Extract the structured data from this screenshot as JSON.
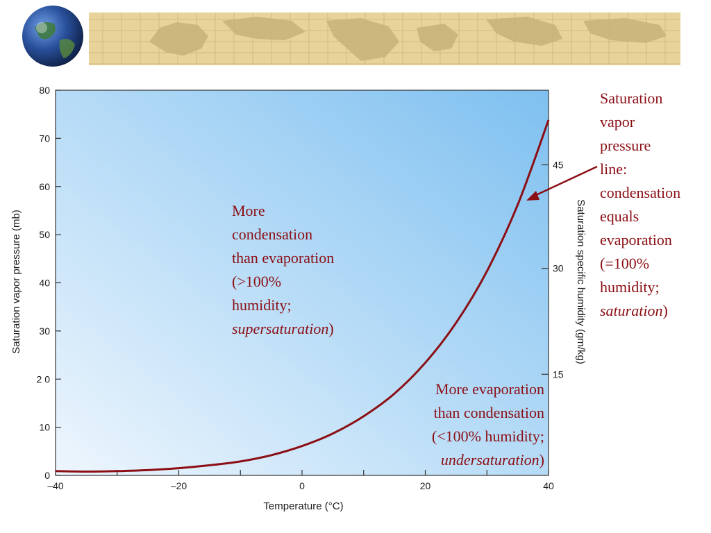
{
  "colors": {
    "banner_bg": "#e8d39a",
    "banner_land": "#c9b57a",
    "plot_fill_light": "#eef6fd",
    "plot_fill_dark": "#7ec0f0",
    "curve": "#8b0e14",
    "annotation_text": "#8b0e14"
  },
  "icons": {
    "globe": "globe-icon"
  },
  "annotations": {
    "supersaturation": {
      "line1": "More",
      "line2": "condensation",
      "line3": "than evaporation",
      "line4": "(>100%",
      "line5": "humidity;",
      "line6_italic": "supersaturation",
      "line6_tail": ")"
    },
    "undersaturation": {
      "line1": "More evaporation",
      "line2": "than condensation",
      "line3": "(<100% humidity;",
      "line4_italic": "undersaturation",
      "line4_tail": ")"
    },
    "saturation_line": {
      "line1": "Saturation",
      "line2": "vapor",
      "line3": "pressure",
      "line4": "line:",
      "line5": "condensation",
      "line6": "equals",
      "line7": "evaporation",
      "line8": "(=100%",
      "line9": "humidity;",
      "line10_italic": "saturation",
      "line10_tail": ")"
    }
  },
  "chart_data": {
    "type": "line",
    "xlabel": "Temperature (°C)",
    "ylabel": "Saturation vapor pressure (mb)",
    "y2label": "Saturation specific humidity (gm/kg)",
    "xlim": [
      -40,
      40
    ],
    "ylim": [
      0,
      80
    ],
    "x_ticks": [
      -40,
      -20,
      0,
      20,
      40
    ],
    "x_tick_labels": [
      "–40",
      "–20",
      "0",
      "20",
      "40"
    ],
    "y_ticks": [
      0,
      10,
      20,
      30,
      40,
      50,
      60,
      70,
      80
    ],
    "y_tick_labels": [
      "0",
      "10",
      "2 0",
      "30",
      "40",
      "50",
      "60",
      "70",
      "80"
    ],
    "y2_ticks": [
      15,
      30,
      45
    ],
    "y2_tick_labels": [
      "15",
      "30",
      "45"
    ],
    "y2_tick_positions_in_y_units": [
      21,
      43,
      64.5
    ],
    "grid": false,
    "series": [
      {
        "x": [
          -40,
          -35,
          -30,
          -25,
          -20,
          -15,
          -10,
          -5,
          0,
          5,
          10,
          15,
          20,
          25,
          30,
          35,
          40
        ],
        "y": [
          0.9,
          0.8,
          0.9,
          1.1,
          1.5,
          2.1,
          2.9,
          4.2,
          6.1,
          8.7,
          12.3,
          17.0,
          23.4,
          31.7,
          42.4,
          56.2,
          73.8
        ]
      }
    ]
  }
}
